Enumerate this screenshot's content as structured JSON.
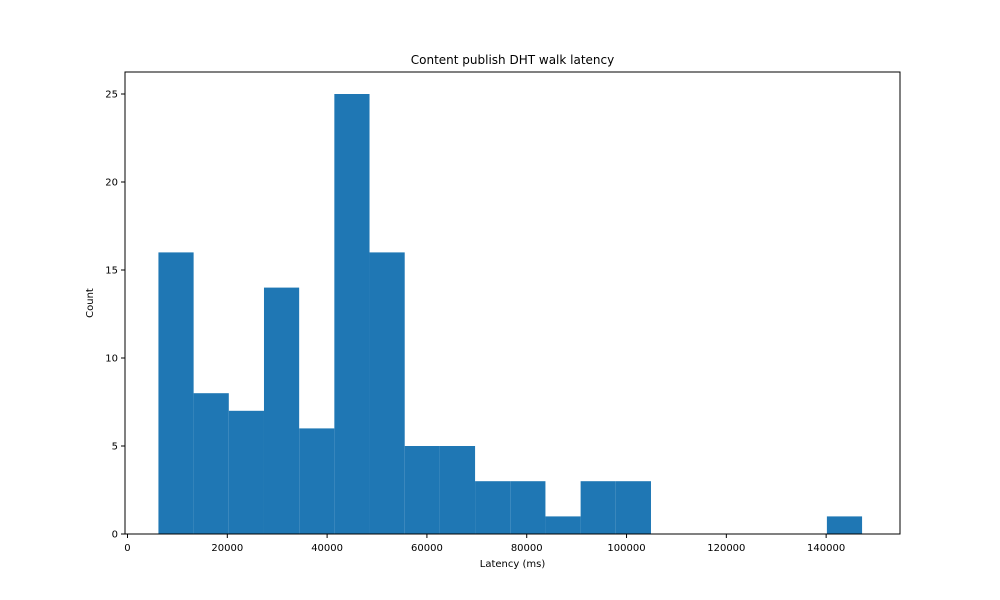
{
  "chart_data": {
    "type": "bar",
    "title": "Content publish DHT walk latency",
    "xlabel": "Latency (ms)",
    "ylabel": "Count",
    "xlim": [
      -500,
      154800
    ],
    "ylim": [
      0,
      26.25
    ],
    "x_ticks": [
      0,
      20000,
      40000,
      60000,
      80000,
      100000,
      120000,
      140000
    ],
    "y_ticks": [
      0,
      5,
      10,
      15,
      20,
      25
    ],
    "bin_edges": [
      6200,
      13250,
      20300,
      27350,
      34400,
      41450,
      48500,
      55550,
      62600,
      69650,
      76700,
      83750,
      90800,
      97850,
      104900,
      111950,
      119000,
      126050,
      133100,
      140150,
      147200
    ],
    "values": [
      16,
      8,
      7,
      14,
      6,
      25,
      16,
      5,
      5,
      3,
      3,
      1,
      3,
      3,
      0,
      0,
      0,
      0,
      0,
      1
    ],
    "bar_color": "#1f77b4",
    "grid": false,
    "legend": "none"
  }
}
